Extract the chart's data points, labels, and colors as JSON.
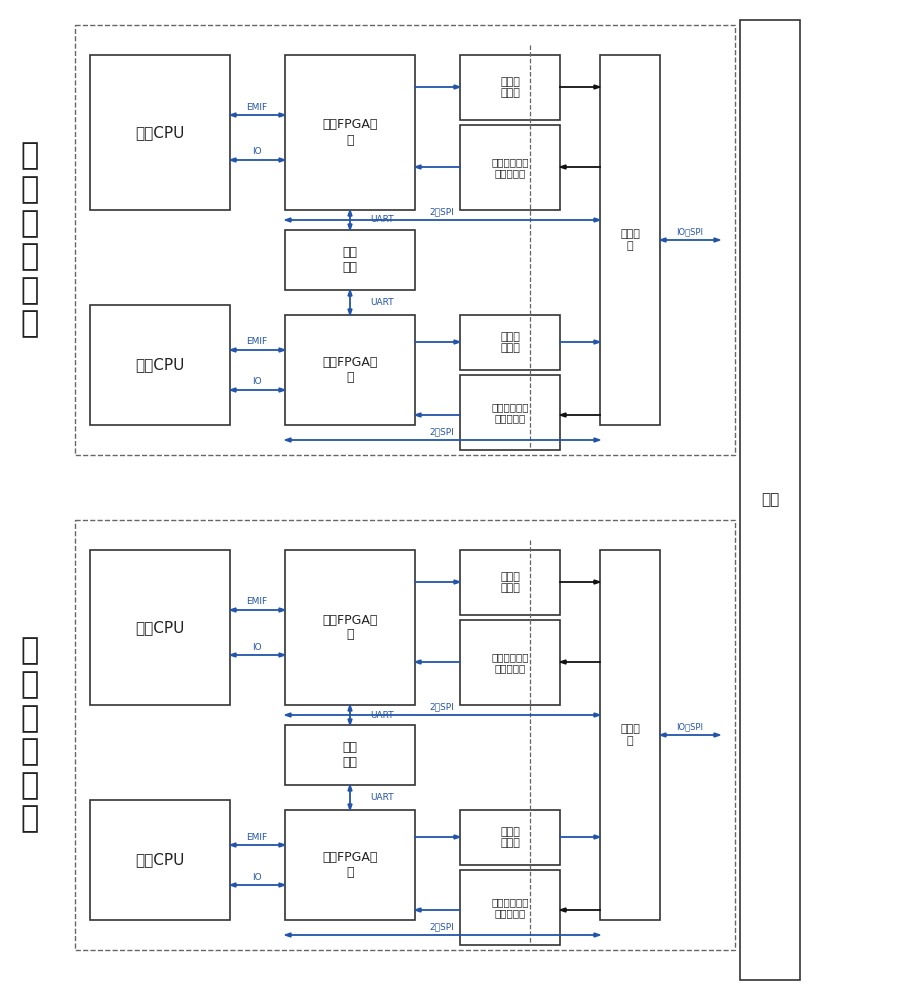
{
  "bg_color": "#ffffff",
  "box_edge_color": "#333333",
  "blue_color": "#2255aa",
  "dark_color": "#111111",
  "dashed_color": "#666666",
  "text_color": "#222222",
  "ch1_label": "第\n一\n单\n模\n通\n道",
  "ch2_label": "第\n二\n单\n模\n通\n道",
  "backplane_label": "背板",
  "cpu1_text": "第一CPU",
  "cpu2_text": "第二CPU",
  "fpga1_text": "第一FPGA模\n块",
  "fpga2_text": "第二FPGA模\n块",
  "isolator_text": "隔离\n器件",
  "bp_iface_text": "背板接\n口",
  "status_out_text": "主从状\n态输出",
  "status_collect_text": "本系和对系主\n从状态采集",
  "emif_label": "EMIF",
  "io_label": "IO",
  "uart_label": "UART",
  "spi_label": "2路SPI",
  "io_spi_label": "IO及SPI"
}
